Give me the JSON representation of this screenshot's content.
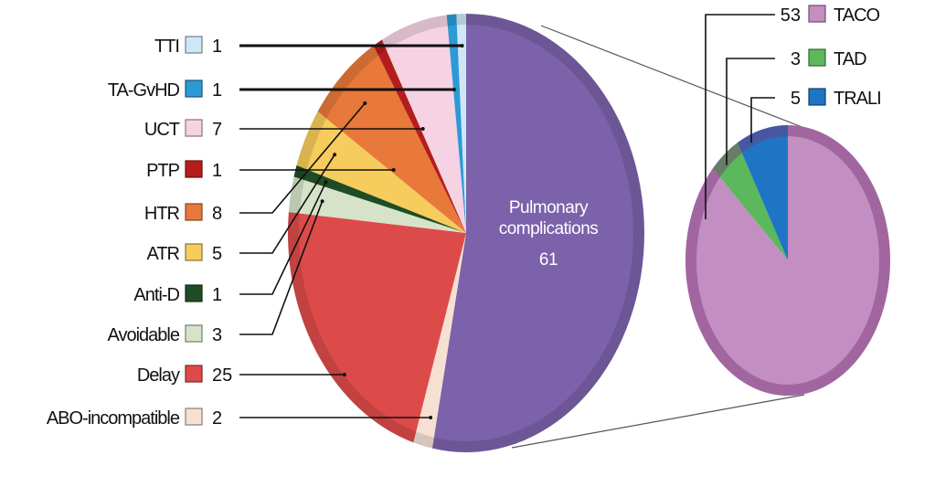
{
  "chart_data": [
    {
      "type": "pie",
      "categories": [
        "TTI",
        "TA-GvHD",
        "UCT",
        "PTP",
        "HTR",
        "ATR",
        "Anti-D",
        "Avoidable",
        "Delay",
        "ABO-incompatible",
        "Pulmonary complications"
      ],
      "values": [
        1,
        1,
        7,
        1,
        8,
        5,
        1,
        3,
        25,
        2,
        61
      ],
      "colors": [
        "#cfe6f5",
        "#2d9ad6",
        "#f5d3e3",
        "#b51d1d",
        "#e8793a",
        "#f6cc5c",
        "#1e4d24",
        "#d7e3c8",
        "#dd4a4a",
        "#f6e0d2",
        "#7b62aa"
      ],
      "center_label": {
        "line1": "Pulmonary",
        "line2": "complications",
        "value": "61"
      },
      "legend": "left"
    },
    {
      "type": "pie",
      "categories": [
        "TACO",
        "TAD",
        "TRALI"
      ],
      "values": [
        53,
        3,
        5
      ],
      "colors": [
        "#c38ec2",
        "#5cb85c",
        "#1f75c4"
      ],
      "legend": "top"
    }
  ]
}
